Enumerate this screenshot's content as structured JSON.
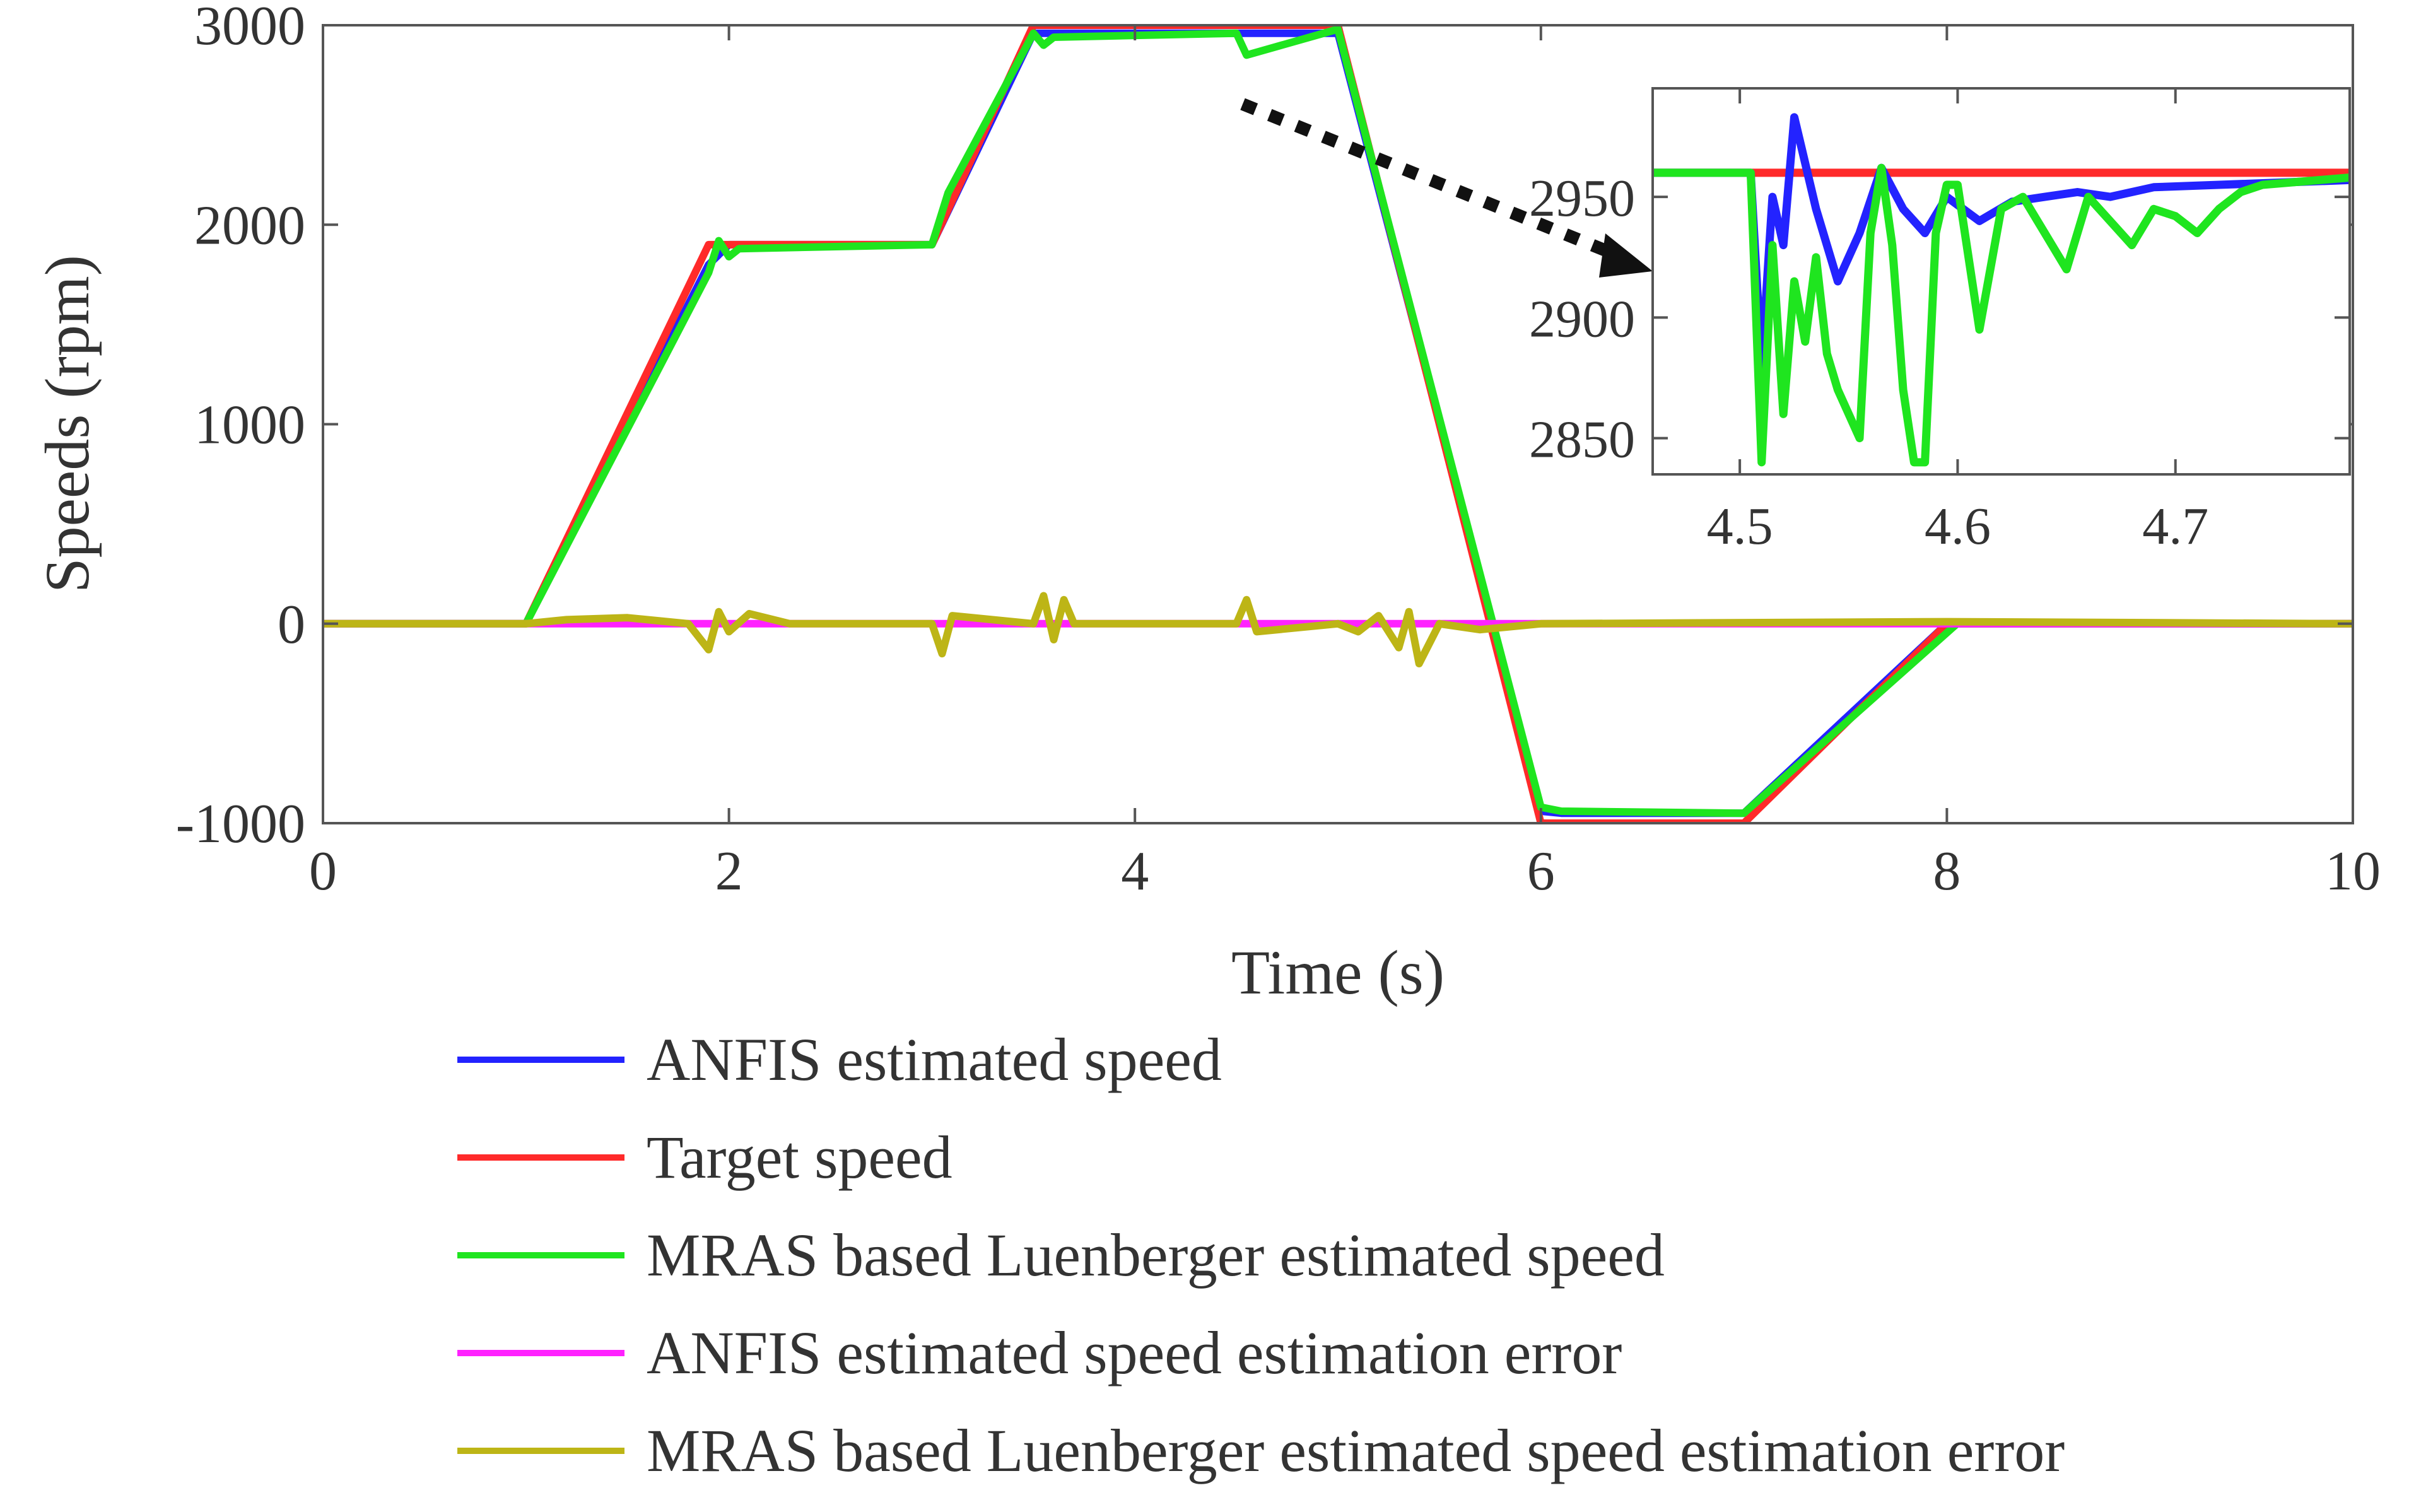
{
  "chart_data": [
    {
      "type": "line",
      "panel": "main",
      "title": "",
      "xlabel": "Time (s)",
      "ylabel": "Speeds (rpm)",
      "xlim": [
        0,
        10
      ],
      "ylim": [
        -1000,
        3000
      ],
      "xticks": [
        0,
        2,
        4,
        6,
        8,
        10
      ],
      "xtick_labels": [
        "0",
        "2",
        "4",
        "6",
        "8",
        "10"
      ],
      "yticks": [
        -1000,
        0,
        1000,
        2000,
        3000
      ],
      "ytick_labels": [
        "-1000",
        "0",
        "1000",
        "2000",
        "3000"
      ],
      "grid": false,
      "legend_position": "below",
      "series": [
        {
          "name": "ANFIS estimated speed",
          "color": "#2323ff",
          "x": [
            0,
            1,
            1.9,
            2,
            3,
            3.5,
            5,
            6,
            6.1,
            7,
            8,
            10
          ],
          "y": [
            0,
            0,
            1800,
            1900,
            1900,
            2960,
            2960,
            -940,
            -950,
            -950,
            0,
            0
          ]
        },
        {
          "name": "Target speed",
          "color": "#ff2a2a",
          "x": [
            0,
            1,
            1.9,
            3,
            3.5,
            5,
            6,
            7,
            8,
            10
          ],
          "y": [
            0,
            0,
            1900,
            1900,
            3000,
            3000,
            -1000,
            -1000,
            0,
            0
          ]
        },
        {
          "name": "MRAS based Luenberger estimated speed",
          "color": "#1fe51f",
          "x": [
            0,
            1,
            1.9,
            1.95,
            2,
            2.05,
            3,
            3.08,
            3.5,
            3.55,
            3.6,
            4.5,
            4.55,
            5,
            6,
            6.1,
            7,
            8.05,
            10
          ],
          "y": [
            0,
            0,
            1760,
            1920,
            1840,
            1880,
            1900,
            2160,
            2960,
            2900,
            2940,
            2960,
            2850,
            2980,
            -920,
            -940,
            -950,
            0,
            0
          ]
        },
        {
          "name": "ANFIS estimated speed estimation error",
          "color": "#ff22ff",
          "x": [
            0,
            1,
            1.5,
            2,
            2.5,
            3,
            3.5,
            4,
            4.5,
            5,
            5.5,
            6,
            10
          ],
          "y": [
            0,
            0,
            0,
            0,
            0,
            0,
            0,
            0,
            0,
            0,
            0,
            0,
            0
          ]
        },
        {
          "name": "MRAS based Luenberger estimated speed estimation error",
          "color": "#bdb516",
          "x": [
            0,
            1,
            1.2,
            1.5,
            1.8,
            1.9,
            1.95,
            2.0,
            2.1,
            2.3,
            3.0,
            3.05,
            3.1,
            3.5,
            3.55,
            3.6,
            3.65,
            3.7,
            4.5,
            4.55,
            4.6,
            5.0,
            5.1,
            5.2,
            5.3,
            5.35,
            5.4,
            5.5,
            5.7,
            6.0,
            8.0,
            10
          ],
          "y": [
            0,
            0,
            20,
            30,
            0,
            -130,
            60,
            -40,
            50,
            0,
            0,
            -150,
            40,
            0,
            140,
            -80,
            120,
            0,
            0,
            120,
            -40,
            0,
            -40,
            40,
            -120,
            60,
            -200,
            0,
            -30,
            0,
            10,
            0
          ]
        }
      ]
    },
    {
      "type": "line",
      "panel": "inset",
      "title": "",
      "xlabel": "",
      "ylabel": "",
      "xlim": [
        4.46,
        4.78
      ],
      "ylim": [
        2835,
        2995
      ],
      "xticks": [
        4.5,
        4.6,
        4.7
      ],
      "xtick_labels": [
        "4.5",
        "4.6",
        "4.7"
      ],
      "yticks": [
        2850,
        2900,
        2950
      ],
      "ytick_labels": [
        "2850",
        "2900",
        "2950"
      ],
      "grid": false,
      "series": [
        {
          "name": "Target speed",
          "color": "#ff2a2a",
          "x": [
            4.46,
            4.78
          ],
          "y": [
            2960,
            2960
          ]
        },
        {
          "name": "ANFIS estimated speed",
          "color": "#2323ff",
          "x": [
            4.46,
            4.505,
            4.51,
            4.515,
            4.52,
            4.525,
            4.535,
            4.545,
            4.555,
            4.565,
            4.575,
            4.585,
            4.595,
            4.61,
            4.625,
            4.64,
            4.655,
            4.67,
            4.69,
            4.72,
            4.78
          ],
          "y": [
            2960,
            2960,
            2880,
            2950,
            2930,
            2983,
            2945,
            2915,
            2935,
            2962,
            2945,
            2935,
            2950,
            2940,
            2948,
            2950,
            2952,
            2950,
            2954,
            2955,
            2957
          ]
        },
        {
          "name": "MRAS based Luenberger estimated speed",
          "color": "#1fe51f",
          "x": [
            4.46,
            4.505,
            4.51,
            4.515,
            4.52,
            4.525,
            4.53,
            4.535,
            4.54,
            4.545,
            4.55,
            4.555,
            4.56,
            4.565,
            4.57,
            4.575,
            4.58,
            4.585,
            4.59,
            4.595,
            4.6,
            4.61,
            4.62,
            4.63,
            4.64,
            4.65,
            4.66,
            4.67,
            4.68,
            4.69,
            4.7,
            4.71,
            4.72,
            4.73,
            4.74,
            4.78
          ],
          "y": [
            2960,
            2960,
            2840,
            2930,
            2860,
            2915,
            2890,
            2925,
            2885,
            2870,
            2860,
            2850,
            2935,
            2962,
            2930,
            2870,
            2840,
            2840,
            2935,
            2955,
            2955,
            2895,
            2945,
            2950,
            2935,
            2920,
            2950,
            2940,
            2930,
            2945,
            2942,
            2935,
            2945,
            2952,
            2955,
            2958
          ]
        }
      ]
    }
  ]
}
